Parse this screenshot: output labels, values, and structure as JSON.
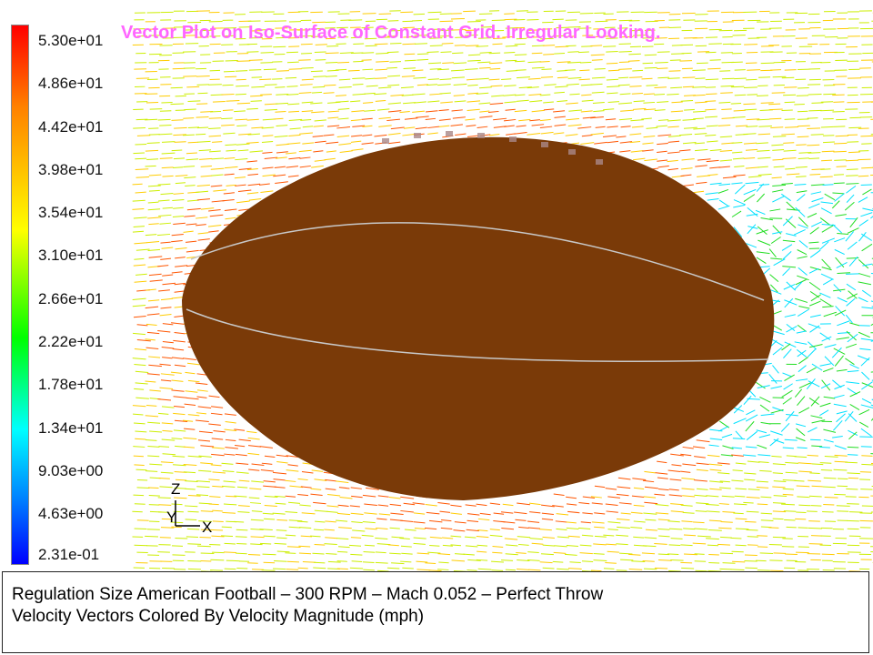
{
  "title": "Vector Plot on Iso-Surface of Constant Grid. Irregular Looking.",
  "colorbar": {
    "labels": [
      "5.30e+01",
      "4.86e+01",
      "4.42e+01",
      "3.98e+01",
      "3.54e+01",
      "3.10e+01",
      "2.66e+01",
      "2.22e+01",
      "1.78e+01",
      "1.34e+01",
      "9.03e+00",
      "4.63e+00",
      "2.31e-01"
    ]
  },
  "axes_triad": {
    "z": "Z",
    "y": "Y",
    "x": "X"
  },
  "caption": {
    "line1": "Regulation Size American Football – 300 RPM – Mach 0.052 – Perfect Throw",
    "line2": "Velocity Vectors Colored By Velocity Magnitude (mph)"
  },
  "colors": {
    "football": "#7a3a08",
    "title": "#ff66ff",
    "seam": "#c8c8c8"
  }
}
